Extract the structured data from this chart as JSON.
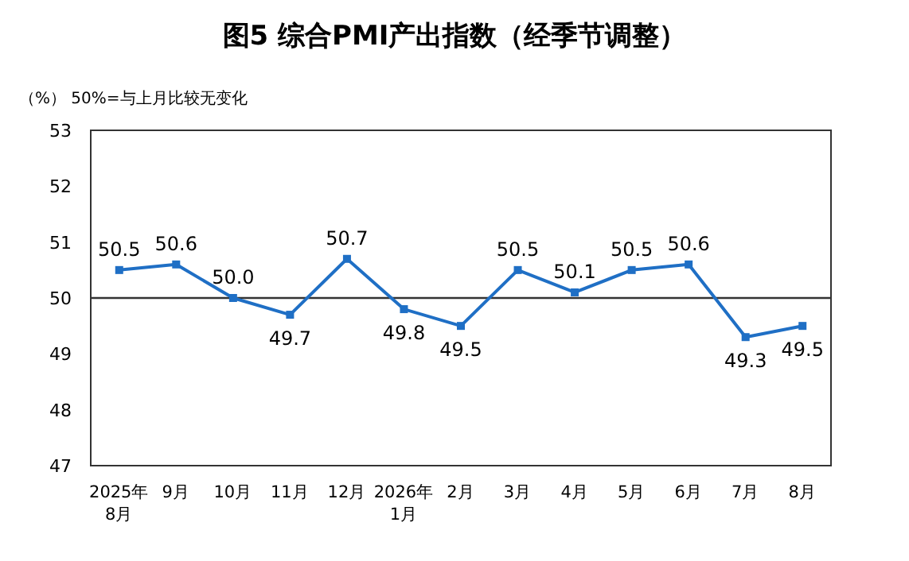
{
  "chart_data": {
    "type": "line",
    "title": "图5 综合PMI产出指数（经季节调整）",
    "ylabel": "（%）  50%=与上月比较无变化",
    "categories": [
      "2025年\n8月",
      "9月",
      "10月",
      "11月",
      "12月",
      "2026年\n1月",
      "2月",
      "3月",
      "4月",
      "5月",
      "6月",
      "7月",
      "8月"
    ],
    "values": [
      50.5,
      50.6,
      50.0,
      49.7,
      50.7,
      49.8,
      49.5,
      50.5,
      50.1,
      50.5,
      50.6,
      49.3,
      49.5
    ],
    "value_labels": [
      "50.5",
      "50.6",
      "50.0",
      "49.7",
      "50.7",
      "49.8",
      "49.5",
      "50.5",
      "50.1",
      "50.5",
      "50.6",
      "49.3",
      "49.5"
    ],
    "color": "#1f6fc5",
    "marker": "square",
    "line_style": "solid",
    "ylim": [
      47,
      53
    ],
    "yticks": [
      47,
      48,
      49,
      50,
      51,
      52,
      53
    ],
    "ref_lines": [
      {
        "axis": "y",
        "value": 50,
        "color": "#333333",
        "line_style": "solid"
      }
    ],
    "grid": false
  }
}
